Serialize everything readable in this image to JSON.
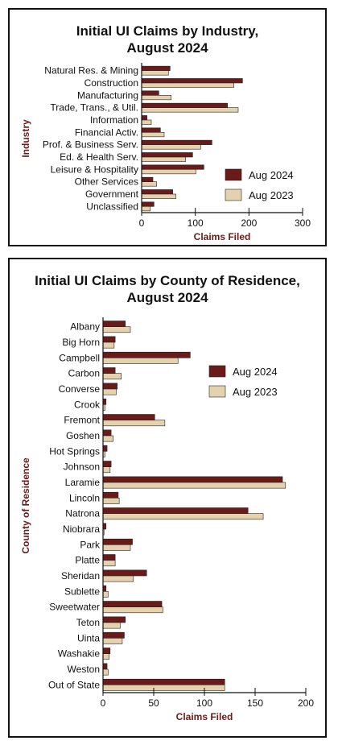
{
  "colors": {
    "aug2024": "#6b1a1a",
    "aug2023": "#e3d2ad",
    "axis_label": "#6b1a1a",
    "bar_stroke": "#222222"
  },
  "chart_data": [
    {
      "type": "bar",
      "orientation": "horizontal",
      "title_lines": [
        "Initial UI Claims by Industry,",
        "August 2024"
      ],
      "xlabel": "Claims Filed",
      "ylabel": "Industry",
      "xlim": [
        0,
        300
      ],
      "xticks": [
        0,
        100,
        200,
        300
      ],
      "legend_position": "right",
      "categories": [
        "Natural Res. & Mining",
        "Construction",
        "Manufacturing",
        "Trade, Trans., & Util.",
        "Information",
        "Financial Activ.",
        "Prof. & Business Serv.",
        "Ed. & Health Serv.",
        "Leisure & Hospitality",
        "Other Services",
        "Government",
        "Unclassified"
      ],
      "series": [
        {
          "name": "Aug 2024",
          "values": [
            53,
            188,
            32,
            160,
            10,
            35,
            131,
            95,
            116,
            21,
            58,
            23
          ]
        },
        {
          "name": "Aug 2023",
          "values": [
            50,
            172,
            55,
            180,
            18,
            42,
            110,
            82,
            101,
            28,
            64,
            16
          ]
        }
      ]
    },
    {
      "type": "bar",
      "orientation": "horizontal",
      "title_lines": [
        "Initial UI Claims by County of Residence,",
        "August 2024"
      ],
      "xlabel": "Claims Filed",
      "ylabel": "County of Residence",
      "xlim": [
        0,
        200
      ],
      "xticks": [
        0,
        50,
        100,
        150,
        200
      ],
      "legend_position": "right",
      "categories": [
        "Albany",
        "Big Horn",
        "Campbell",
        "Carbon",
        "Converse",
        "Crook",
        "Fremont",
        "Goshen",
        "Hot Springs",
        "Johnson",
        "Laramie",
        "Lincoln",
        "Natrona",
        "Niobrara",
        "Park",
        "Platte",
        "Sheridan",
        "Sublette",
        "Sweetwater",
        "Teton",
        "Uinta",
        "Washakie",
        "Weston",
        "Out of State"
      ],
      "series": [
        {
          "name": "Aug 2024",
          "values": [
            22,
            12,
            86,
            12,
            14,
            3,
            51,
            8,
            4,
            8,
            177,
            15,
            143,
            3,
            29,
            12,
            43,
            3,
            58,
            22,
            21,
            7,
            4,
            120
          ]
        },
        {
          "name": "Aug 2023",
          "values": [
            27,
            11,
            74,
            18,
            13,
            2,
            61,
            10,
            2,
            7,
            180,
            16,
            158,
            1,
            27,
            12,
            30,
            5,
            59,
            17,
            19,
            6,
            5,
            120
          ]
        }
      ]
    }
  ]
}
